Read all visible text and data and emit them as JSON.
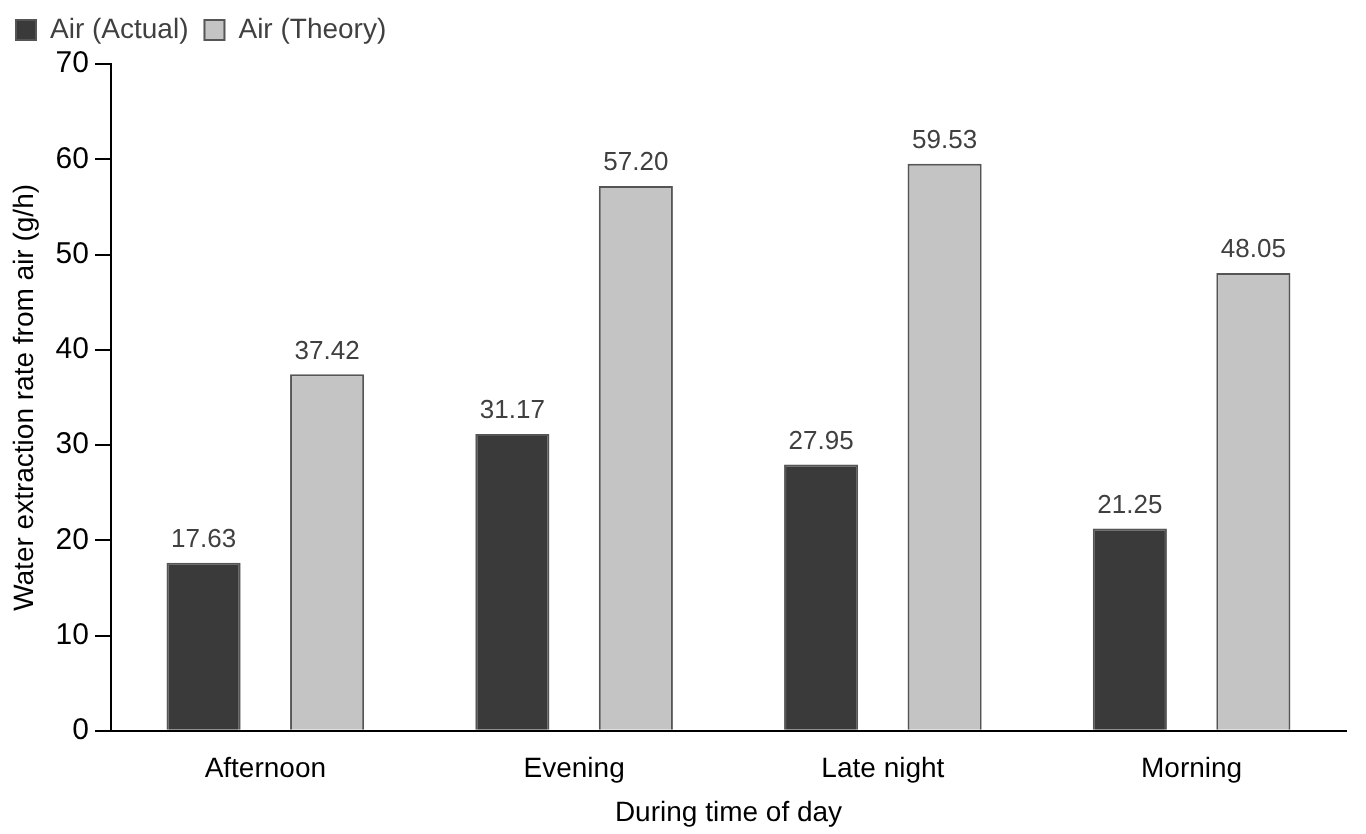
{
  "chart_data": {
    "type": "bar",
    "xlabel": "During time of day",
    "ylabel": "Water extraction rate from air (g/h)",
    "categories": [
      "Afternoon",
      "Evening",
      "Late night",
      "Morning"
    ],
    "series": [
      {
        "name": "Air (Actual)",
        "color": "#3a3a3a",
        "values": [
          17.63,
          31.17,
          27.95,
          21.25
        ]
      },
      {
        "name": "Air (Theory)",
        "color": "#c4c4c4",
        "values": [
          37.42,
          57.2,
          59.53,
          48.05
        ]
      }
    ],
    "value_labels": [
      [
        "17.63",
        "31.17",
        "27.95",
        "21.25"
      ],
      [
        "37.42",
        "57.20",
        "59.53",
        "48.05"
      ]
    ],
    "ylim": [
      0,
      70
    ],
    "yticks": [
      0,
      10,
      20,
      30,
      40,
      50,
      60,
      70
    ],
    "grid": false,
    "legend": "top left"
  }
}
